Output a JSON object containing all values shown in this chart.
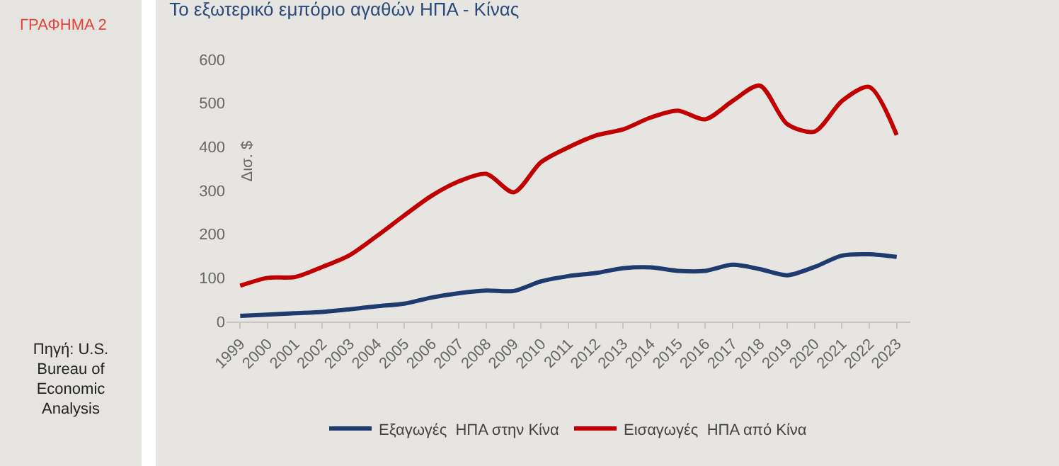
{
  "chart_data": {
    "type": "line",
    "title": "Το εξωτερικό εμπόριο αγαθών ΗΠΑ - Κίνας",
    "ylabel": "Δισ. $",
    "annotations": [
      "ΓΡΑΦΗΜΑ 2",
      "Πηγή: U.S. Bureau of Economic Analysis"
    ],
    "categories": [
      "1999",
      "2000",
      "2001",
      "2002",
      "2003",
      "2004",
      "2005",
      "2006",
      "2007",
      "2008",
      "2009",
      "2010",
      "2011",
      "2012",
      "2013",
      "2014",
      "2015",
      "2016",
      "2017",
      "2018",
      "2019",
      "2020",
      "2021",
      "2022",
      "2023"
    ],
    "series": [
      {
        "name": "Εξαγωγές  ΗΠΑ στην Κίνα",
        "color": "#1f3a6e",
        "values": [
          13,
          16,
          19,
          22,
          28,
          35,
          41,
          55,
          65,
          71,
          70,
          92,
          104,
          111,
          122,
          124,
          116,
          116,
          130,
          120,
          106,
          125,
          151,
          154,
          148
        ]
      },
      {
        "name": "Εισαγωγές  ΗΠΑ από Κίνα",
        "color": "#c00000",
        "values": [
          82,
          100,
          102,
          125,
          152,
          196,
          243,
          288,
          321,
          338,
          296,
          365,
          399,
          426,
          440,
          467,
          483,
          463,
          505,
          540,
          452,
          435,
          505,
          537,
          427
        ]
      }
    ],
    "ylim": [
      0,
      600
    ],
    "yticks": [
      0,
      100,
      200,
      300,
      400,
      500,
      600
    ],
    "grid": false,
    "legend": "bottom",
    "marker": "none",
    "line_style": "solid"
  }
}
